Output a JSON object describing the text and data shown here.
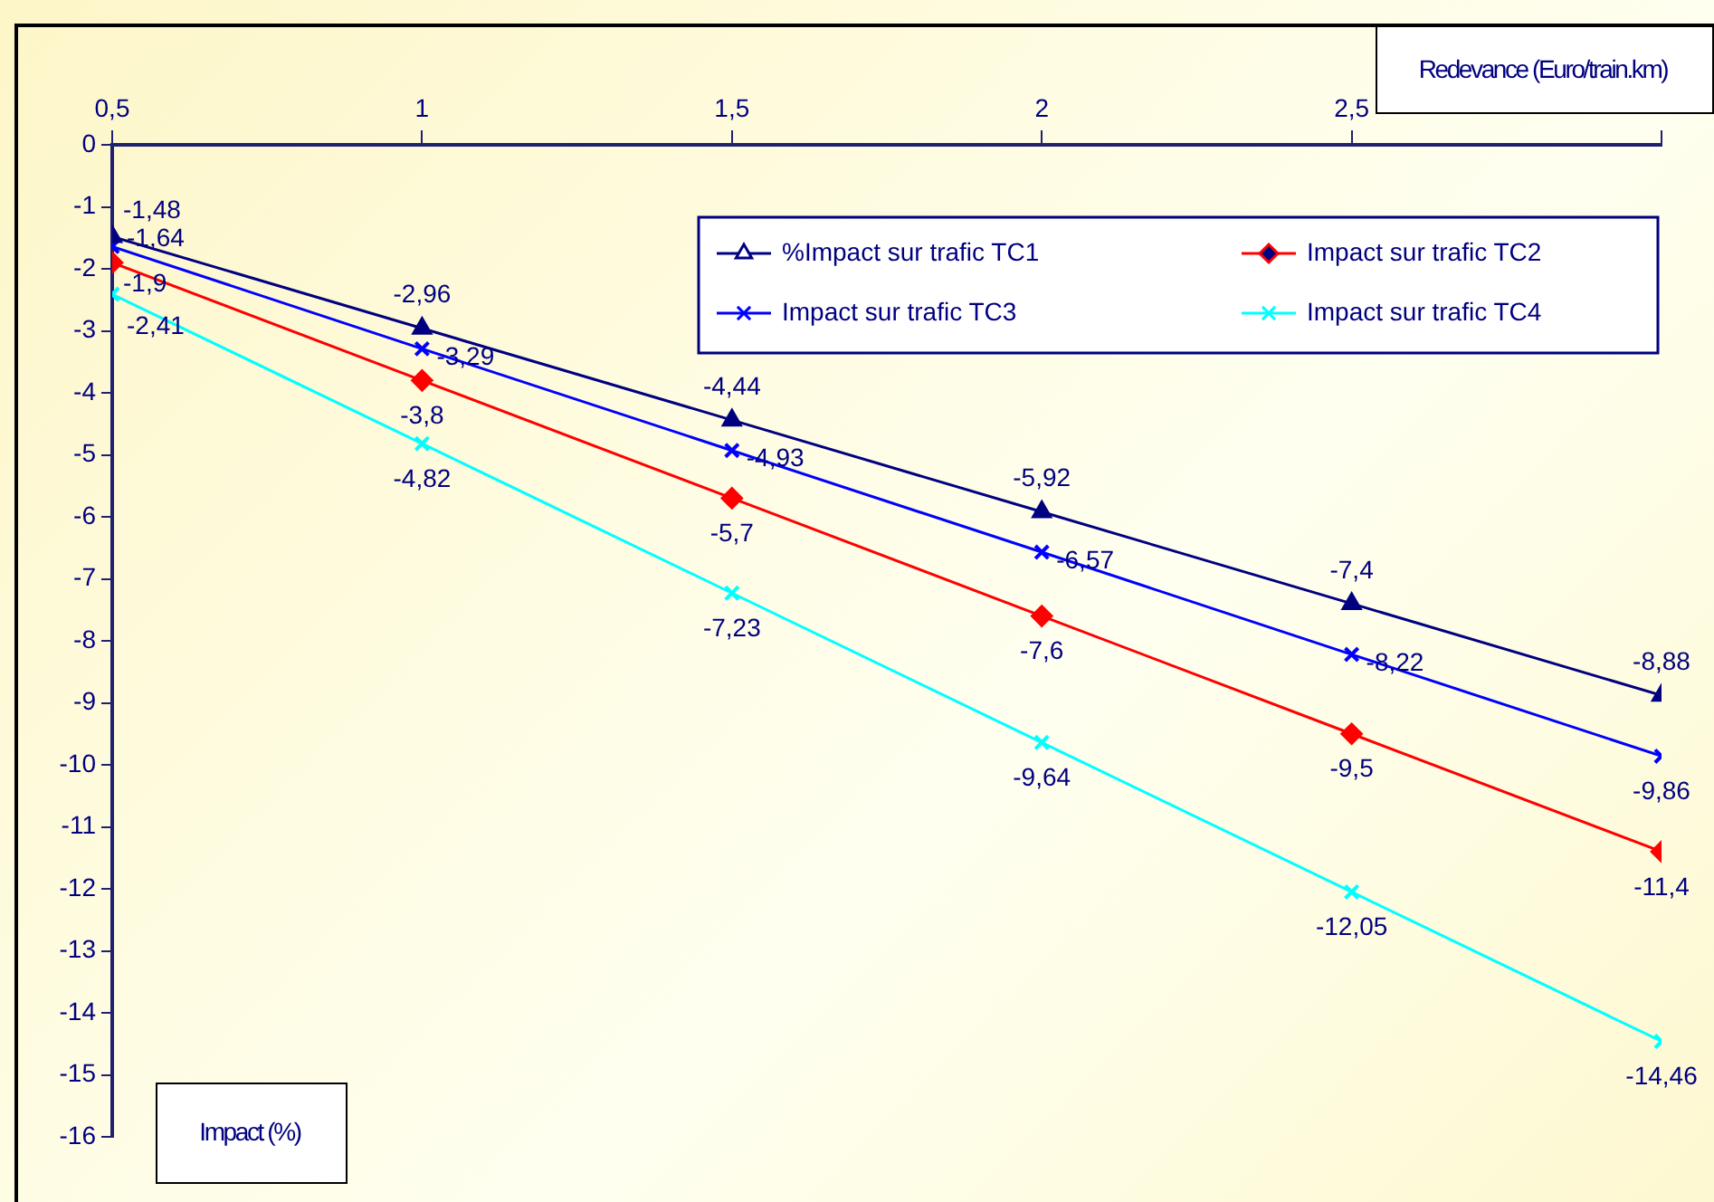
{
  "chart_data": {
    "type": "line",
    "xlabel": "Redevance (Euro/train.km)",
    "ylabel": "Impact (%)",
    "x": [
      0.5,
      1,
      1.5,
      2,
      2.5,
      3
    ],
    "series": [
      {
        "name": "%Impact sur trafic TC1",
        "color": "#000080",
        "marker": "triangle",
        "values": [
          -1.48,
          -2.96,
          -4.44,
          -5.92,
          -7.4,
          -8.88
        ],
        "value_labels": [
          "-1,48",
          "-2,96",
          "-4,44",
          "-5,92",
          "-7,4",
          "-8,88"
        ]
      },
      {
        "name": "Impact sur trafic TC2",
        "color": "#ff0000",
        "marker": "diamond",
        "values": [
          -1.9,
          -3.8,
          -5.7,
          -7.6,
          -9.5,
          -11.4
        ],
        "value_labels": [
          "-1,9",
          "-3,8",
          "-5,7",
          "-7,6",
          "-9,5",
          "-11,4"
        ]
      },
      {
        "name": "Impact sur trafic TC3",
        "color": "#0000ff",
        "marker": "cross",
        "values": [
          -1.64,
          -3.29,
          -4.93,
          -6.57,
          -8.22,
          -9.86
        ],
        "value_labels": [
          "-1,64",
          "-3,29",
          "-4,93",
          "-6,57",
          "-8,22",
          "-9,86"
        ]
      },
      {
        "name": "Impact sur trafic TC4",
        "color": "#00ffff",
        "marker": "cross",
        "values": [
          -2.41,
          -4.82,
          -7.23,
          -9.64,
          -12.05,
          -14.46
        ],
        "value_labels": [
          "-2,41",
          "-4,82",
          "-7,23",
          "-9,64",
          "-12,05",
          "-14,46"
        ]
      }
    ],
    "xlim": [
      0.5,
      3
    ],
    "xticks": [
      {
        "value": 0.5,
        "label": "0,5"
      },
      1,
      {
        "value": 1.5,
        "label": "1,5"
      },
      2,
      {
        "value": 2.5,
        "label": "2,5"
      },
      {
        "value": 3,
        "label": null
      }
    ],
    "ylim": [
      -16,
      0
    ],
    "yticks": [
      0,
      -1,
      -2,
      -3,
      -4,
      -5,
      -6,
      -7,
      -8,
      -9,
      -10,
      -11,
      -12,
      -13,
      -14,
      -15,
      -16
    ],
    "grid": false,
    "legend": "top right",
    "line_style": "solid"
  }
}
